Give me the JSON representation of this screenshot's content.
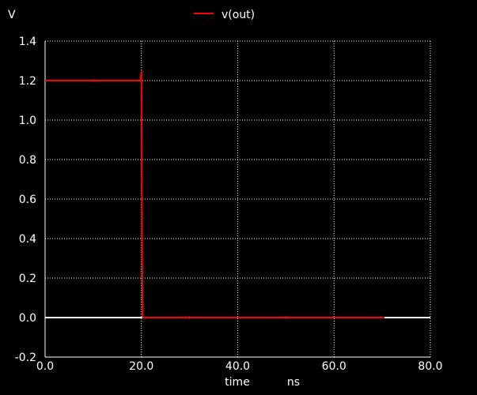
{
  "chart_data": {
    "type": "line",
    "ylabel": "V",
    "xlabel": "time",
    "xunit": "ns",
    "xlim": [
      0.0,
      80.0
    ],
    "ylim": [
      -0.2,
      1.4
    ],
    "xticks": [
      "0.0",
      "20.0",
      "40.0",
      "60.0",
      "80.0"
    ],
    "yticks": [
      "-0.2",
      "0.0",
      "0.2",
      "0.4",
      "0.6",
      "0.8",
      "1.0",
      "1.2",
      "1.4"
    ],
    "grid": true,
    "legend": "top-center",
    "series": [
      {
        "name": "v(out)",
        "color": "#ff0000",
        "x": [
          0.0,
          19.8,
          20.0,
          20.1,
          20.2,
          20.3,
          20.5,
          70.5
        ],
        "y": [
          1.2,
          1.2,
          1.25,
          0.6,
          0.1,
          0.0,
          0.0,
          0.0
        ]
      }
    ]
  }
}
